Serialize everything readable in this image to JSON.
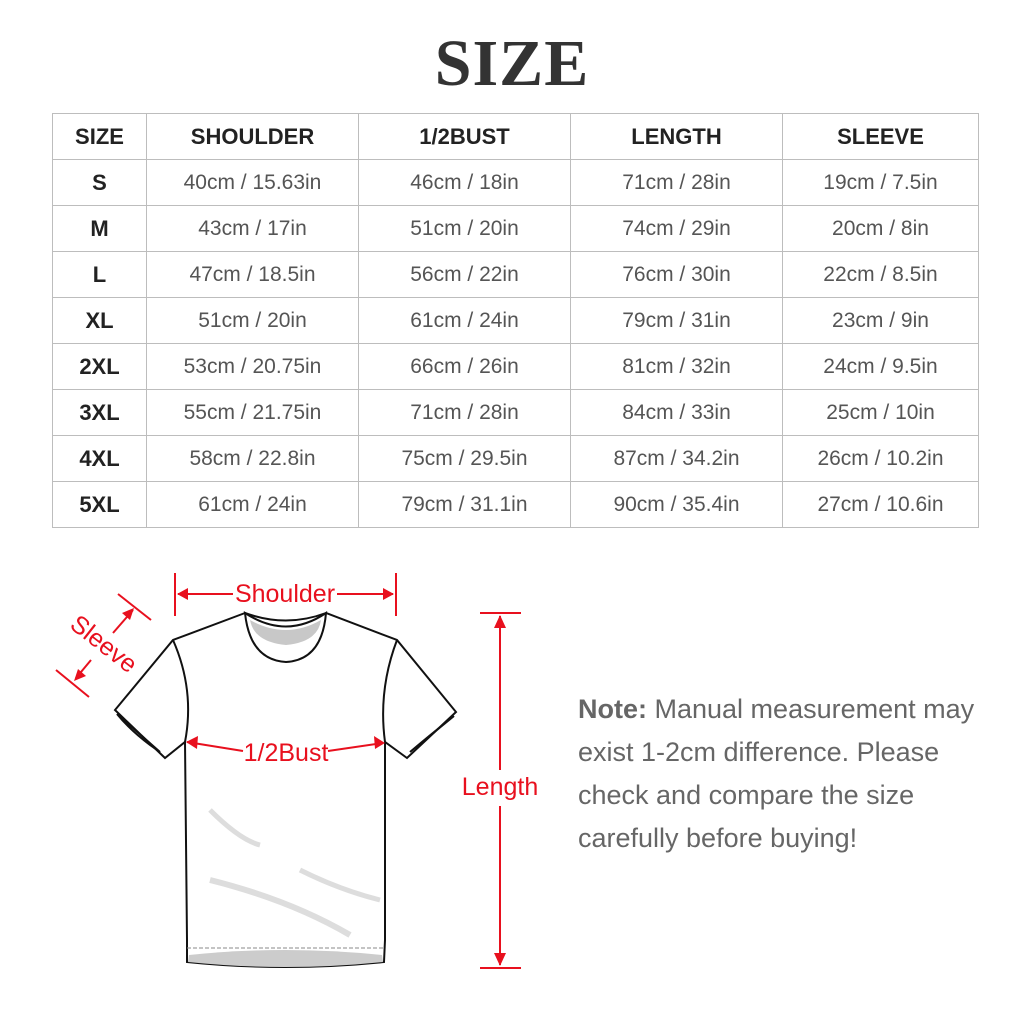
{
  "title": "SIZE",
  "table": {
    "headers": [
      "SIZE",
      "SHOULDER",
      "1/2BUST",
      "LENGTH",
      "SLEEVE"
    ],
    "rows": [
      [
        "S",
        "40cm / 15.63in",
        "46cm / 18in",
        "71cm / 28in",
        "19cm / 7.5in"
      ],
      [
        "M",
        "43cm / 17in",
        "51cm / 20in",
        "74cm / 29in",
        "20cm / 8in"
      ],
      [
        "L",
        "47cm / 18.5in",
        "56cm / 22in",
        "76cm / 30in",
        "22cm / 8.5in"
      ],
      [
        "XL",
        "51cm / 20in",
        "61cm / 24in",
        "79cm / 31in",
        "23cm / 9in"
      ],
      [
        "2XL",
        "53cm / 20.75in",
        "66cm / 26in",
        "81cm / 32in",
        "24cm / 9.5in"
      ],
      [
        "3XL",
        "55cm / 21.75in",
        "71cm / 28in",
        "84cm / 33in",
        "25cm / 10in"
      ],
      [
        "4XL",
        "58cm / 22.8in",
        "75cm / 29.5in",
        "87cm / 34.2in",
        "26cm / 10.2in"
      ],
      [
        "5XL",
        "61cm / 24in",
        "79cm / 31.1in",
        "90cm / 35.4in",
        "27cm / 10.6in"
      ]
    ]
  },
  "diagram": {
    "labels": {
      "shoulder": "Shoulder",
      "sleeve": "Sleeve",
      "bust": "1/2Bust",
      "length": "Length"
    },
    "accent_color": "#e8101e"
  },
  "note": {
    "label": "Note:",
    "text": " Manual measurement may exist 1-2cm difference. Please check and compare the size carefully before buying!"
  }
}
